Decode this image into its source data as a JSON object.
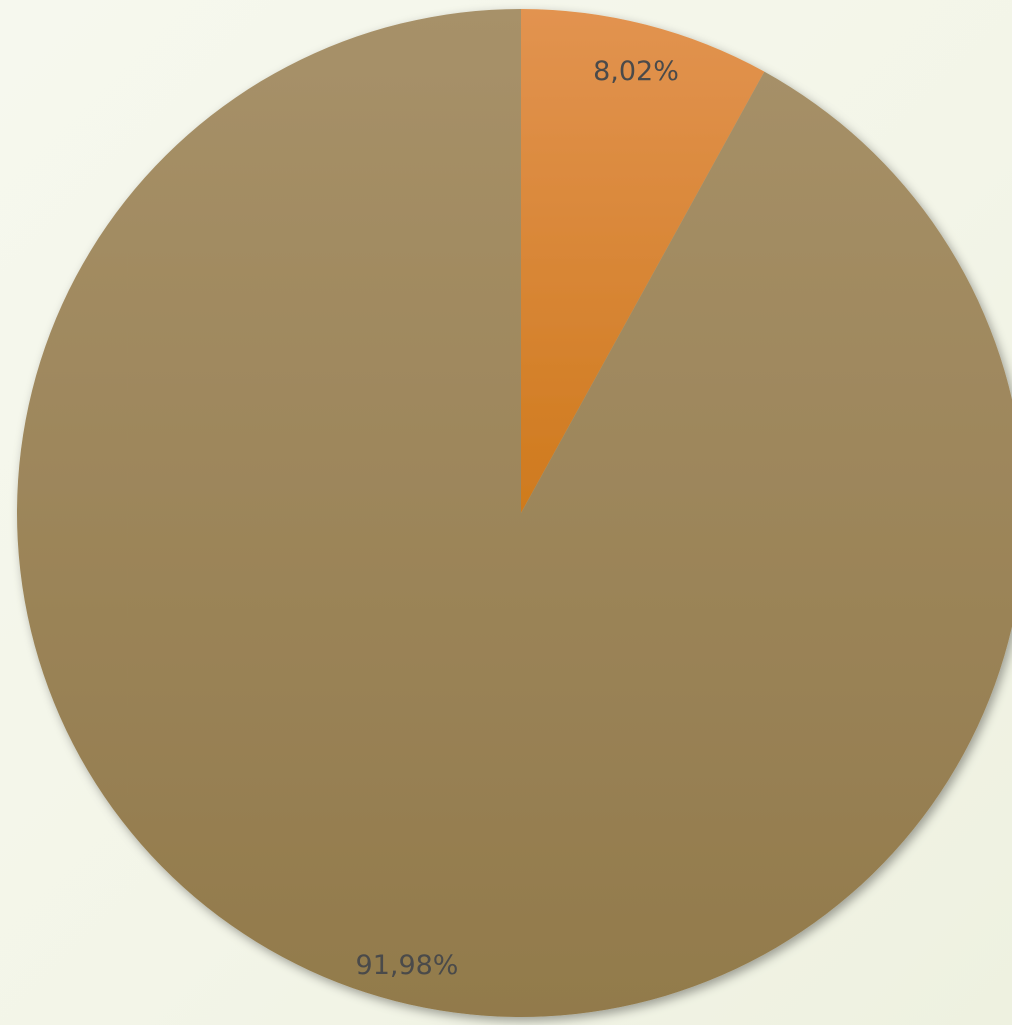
{
  "chart_data": {
    "type": "pie",
    "slices": [
      {
        "value": 8.02,
        "label": "8,02%",
        "color_top": "#e29350",
        "color_bottom": "#cf7a1d"
      },
      {
        "value": 91.98,
        "label": "91,98%",
        "color_top": "#a79169",
        "color_bottom": "#927a4b"
      }
    ],
    "start_angle_deg": 0,
    "direction": "clockwise",
    "legend": "none"
  }
}
